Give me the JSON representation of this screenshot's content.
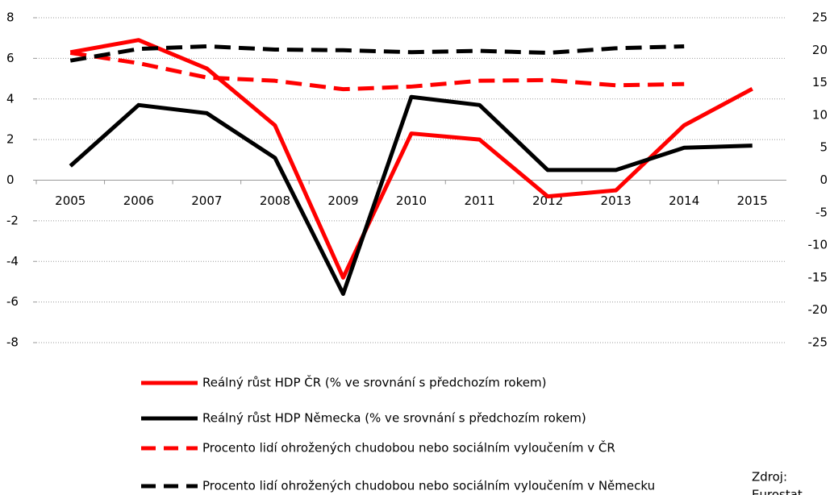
{
  "chart_data": {
    "type": "line",
    "categories": [
      "2005",
      "2006",
      "2007",
      "2008",
      "2009",
      "2010",
      "2011",
      "2012",
      "2013",
      "2014",
      "2015"
    ],
    "series": [
      {
        "name": "Reálný růst HDP ČR (% ve srovnání s předchozím rokem)",
        "color": "#ff0000",
        "dashed": false,
        "axis": "y",
        "values": [
          6.3,
          6.9,
          5.5,
          2.7,
          -4.8,
          2.3,
          2.0,
          -0.8,
          -0.5,
          2.7,
          4.5
        ]
      },
      {
        "name": "Reálný růst HDP Německa (% ve srovnání s předchozím rokem)",
        "color": "#000000",
        "dashed": false,
        "axis": "y",
        "values": [
          0.7,
          3.7,
          3.3,
          1.1,
          -5.6,
          4.1,
          3.7,
          0.5,
          0.5,
          1.6,
          1.7
        ]
      },
      {
        "name": "Procento lidí ohrožených chudobou nebo sociálním vyloučením v ČR",
        "color": "#ff0000",
        "dashed": true,
        "axis": "y2",
        "values": [
          19.6,
          18.0,
          15.8,
          15.3,
          14.0,
          14.4,
          15.3,
          15.4,
          14.6,
          14.8,
          null
        ]
      },
      {
        "name": "Procento lidí ohrožených chudobou nebo sociálním vyloučením v Německu",
        "color": "#000000",
        "dashed": true,
        "axis": "y2",
        "values": [
          18.4,
          20.2,
          20.6,
          20.1,
          20.0,
          19.7,
          19.9,
          19.6,
          20.3,
          20.6,
          null
        ]
      }
    ],
    "ylim": [
      -8,
      8
    ],
    "yticks": [
      -8,
      -6,
      -4,
      -2,
      0,
      2,
      4,
      6,
      8
    ],
    "y2lim": [
      -25,
      25
    ],
    "y2ticks": [
      -25,
      -20,
      -15,
      -10,
      -5,
      0,
      5,
      10,
      15,
      20,
      25
    ],
    "grid": true,
    "source": [
      "Zdroj:",
      "Eurostat"
    ]
  }
}
